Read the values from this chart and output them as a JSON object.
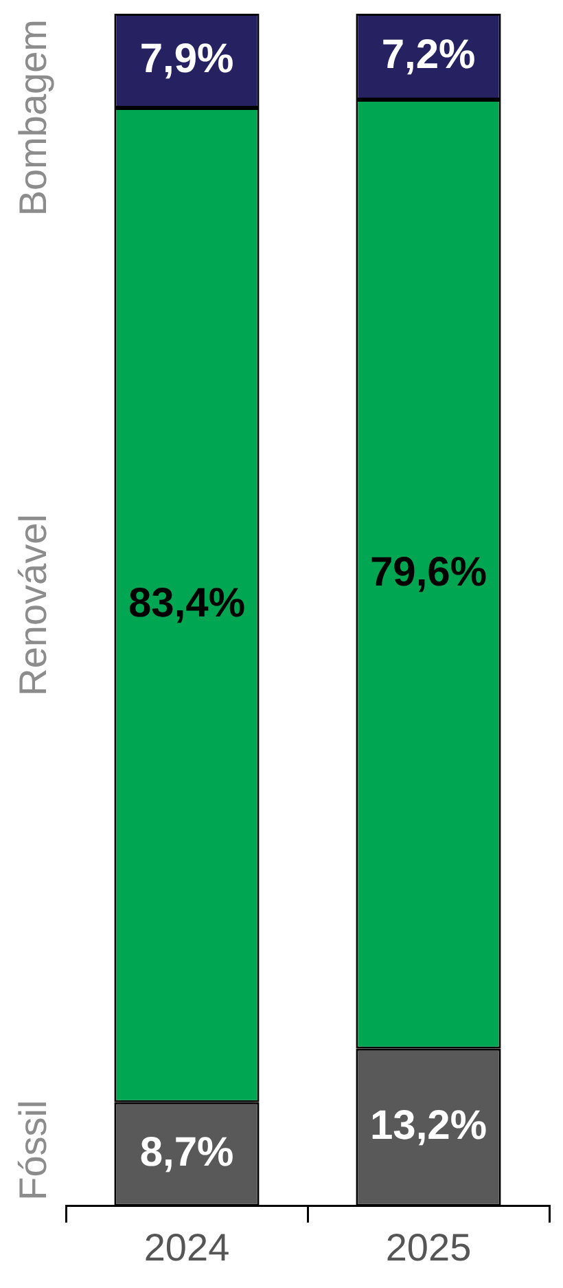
{
  "chart_data": {
    "type": "bar",
    "stacked": true,
    "categories": [
      "2024",
      "2025"
    ],
    "series": [
      {
        "name": "Fóssil",
        "color": "#595959",
        "values": [
          8.7,
          13.2
        ],
        "value_labels": [
          "8,7%",
          "13,2%"
        ]
      },
      {
        "name": "Renovável",
        "color": "#00a651",
        "values": [
          83.4,
          79.6
        ],
        "value_labels": [
          "83,4%",
          "79,6%"
        ]
      },
      {
        "name": "Bombagem",
        "color": "#262262",
        "values": [
          7.9,
          7.2
        ],
        "value_labels": [
          "7,9%",
          "7,2%"
        ]
      }
    ],
    "ylim": [
      0,
      100
    ],
    "tick_labels": "x",
    "grid": false,
    "legend": false
  }
}
